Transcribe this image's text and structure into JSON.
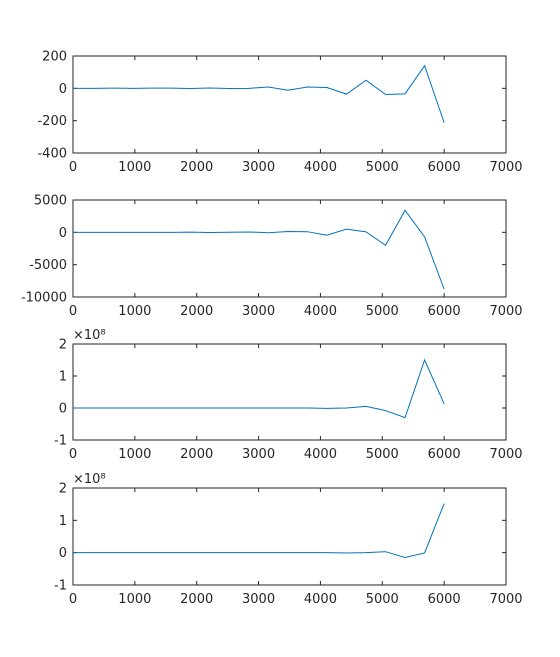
{
  "chart_data": [
    {
      "type": "line",
      "title": "",
      "xlabel": "",
      "ylabel": "",
      "xlim": [
        0,
        7000
      ],
      "ylim": [
        -400,
        200
      ],
      "xticks": [
        0,
        1000,
        2000,
        3000,
        4000,
        5000,
        6000,
        7000
      ],
      "yticks": [
        -400,
        -200,
        0,
        200
      ],
      "xtick_labels": [
        "0",
        "1000",
        "2000",
        "3000",
        "4000",
        "5000",
        "6000",
        "7000"
      ],
      "ytick_labels": [
        "-400",
        "-200",
        "0",
        "200"
      ],
      "exponent_label": "",
      "grid": false,
      "line_color": "#0072BD",
      "x": [
        0,
        315,
        632,
        947,
        1263,
        1579,
        1895,
        2210,
        2526,
        2842,
        3158,
        3474,
        3789,
        4105,
        4421,
        4737,
        5053,
        5368,
        5684,
        6000
      ],
      "y": [
        0,
        0,
        1,
        0,
        1,
        1,
        -1,
        2,
        -1,
        0,
        8,
        -12,
        8,
        5,
        -36,
        50,
        -38,
        -34,
        140,
        -212
      ]
    },
    {
      "type": "line",
      "title": "",
      "xlabel": "",
      "ylabel": "",
      "xlim": [
        0,
        7000
      ],
      "ylim": [
        -10000,
        5000
      ],
      "xticks": [
        0,
        1000,
        2000,
        3000,
        4000,
        5000,
        6000,
        7000
      ],
      "yticks": [
        -10000,
        -5000,
        0,
        5000
      ],
      "xtick_labels": [
        "0",
        "1000",
        "2000",
        "3000",
        "4000",
        "5000",
        "6000",
        "7000"
      ],
      "ytick_labels": [
        "-10000",
        "-5000",
        "0",
        "5000"
      ],
      "exponent_label": "",
      "grid": false,
      "line_color": "#0072BD",
      "x": [
        0,
        315,
        632,
        947,
        1263,
        1579,
        1895,
        2210,
        2526,
        2842,
        3158,
        3474,
        3789,
        4105,
        4421,
        4737,
        5053,
        5368,
        5684,
        6000
      ],
      "y": [
        0,
        0,
        0,
        0,
        0,
        0,
        30,
        -20,
        20,
        60,
        -60,
        120,
        100,
        -450,
        500,
        80,
        -2000,
        3400,
        -700,
        -8800
      ]
    },
    {
      "type": "line",
      "title": "",
      "xlabel": "",
      "ylabel": "",
      "xlim": [
        0,
        7000
      ],
      "ylim": [
        -1,
        2
      ],
      "xticks": [
        0,
        1000,
        2000,
        3000,
        4000,
        5000,
        6000,
        7000
      ],
      "yticks": [
        -1,
        0,
        1,
        2
      ],
      "xtick_labels": [
        "0",
        "1000",
        "2000",
        "3000",
        "4000",
        "5000",
        "6000",
        "7000"
      ],
      "ytick_labels": [
        "-1",
        "0",
        "1",
        "2"
      ],
      "exponent_label": "×10⁸",
      "y_multiplier": 100000000,
      "grid": false,
      "line_color": "#0072BD",
      "x": [
        0,
        315,
        632,
        947,
        1263,
        1579,
        1895,
        2210,
        2526,
        2842,
        3158,
        3474,
        3789,
        4105,
        4421,
        4737,
        5053,
        5368,
        5684,
        6000
      ],
      "y": [
        0,
        0,
        0,
        0,
        0,
        0,
        0,
        0,
        0,
        0,
        0,
        0,
        0,
        -0.01,
        0,
        0.05,
        -0.08,
        -0.3,
        1.5,
        0.13
      ]
    },
    {
      "type": "line",
      "title": "",
      "xlabel": "",
      "ylabel": "",
      "xlim": [
        0,
        7000
      ],
      "ylim": [
        -1,
        2
      ],
      "xticks": [
        0,
        1000,
        2000,
        3000,
        4000,
        5000,
        6000,
        7000
      ],
      "yticks": [
        -1,
        0,
        1,
        2
      ],
      "xtick_labels": [
        "0",
        "1000",
        "2000",
        "3000",
        "4000",
        "5000",
        "6000",
        "7000"
      ],
      "ytick_labels": [
        "-1",
        "0",
        "1",
        "2"
      ],
      "exponent_label": "×10⁸",
      "y_multiplier": 100000000,
      "grid": false,
      "line_color": "#0072BD",
      "x": [
        0,
        315,
        632,
        947,
        1263,
        1579,
        1895,
        2210,
        2526,
        2842,
        3158,
        3474,
        3789,
        4105,
        4421,
        4737,
        5053,
        5368,
        5684,
        6000
      ],
      "y": [
        0,
        0,
        0,
        0,
        0,
        0,
        0,
        0,
        0,
        0,
        0,
        0,
        0,
        0,
        -0.01,
        0,
        0.03,
        -0.15,
        -0.01,
        1.52
      ]
    }
  ]
}
